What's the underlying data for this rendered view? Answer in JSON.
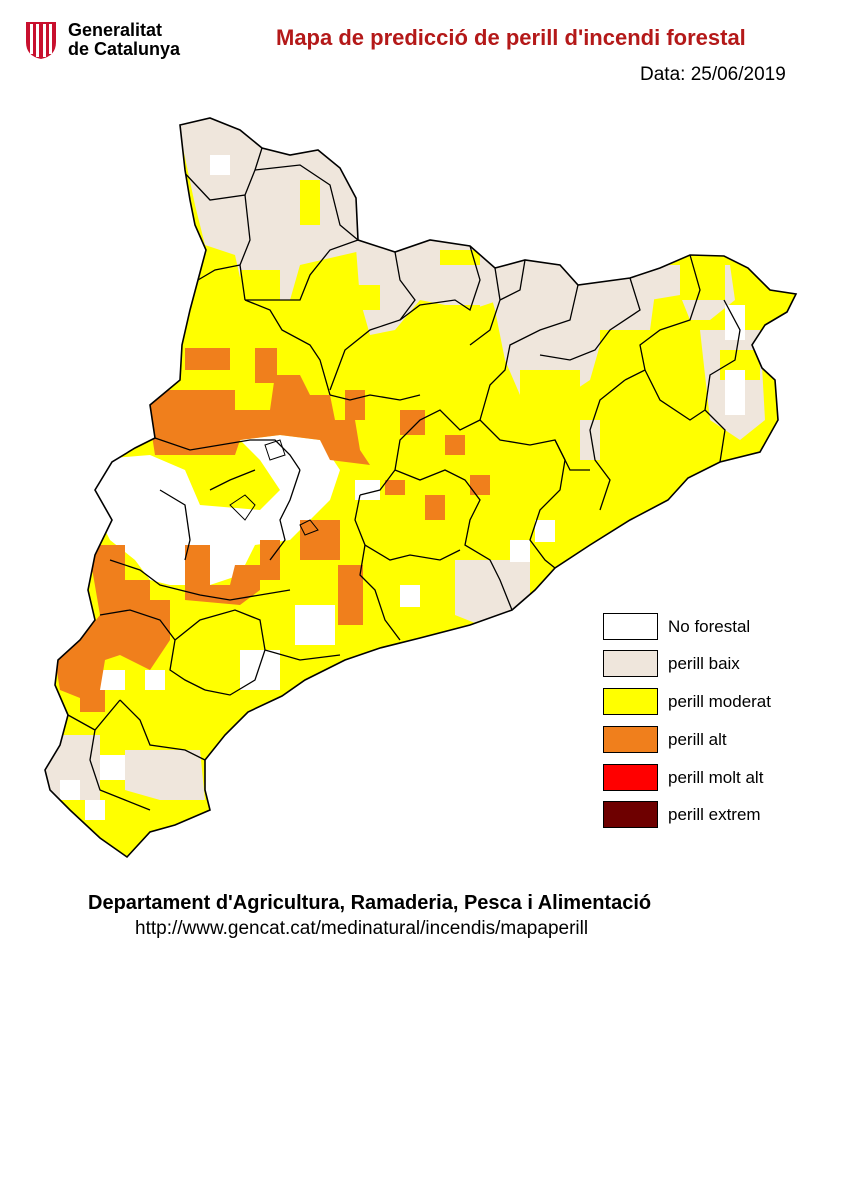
{
  "header": {
    "logo_line1": "Generalitat",
    "logo_line2": "de Catalunya",
    "title": "Mapa de predicció de perill d'incendi forestal",
    "date": "Data: 25/06/2019"
  },
  "legend": [
    {
      "label": "No forestal",
      "color": "#ffffff"
    },
    {
      "label": "perill baix",
      "color": "#efe6dc"
    },
    {
      "label": "perill moderat",
      "color": "#ffff00"
    },
    {
      "label": "perill alt",
      "color": "#f07f1c"
    },
    {
      "label": "perill molt alt",
      "color": "#ff0000"
    },
    {
      "label": "perill extrem",
      "color": "#6e0000"
    }
  ],
  "footer": {
    "department": "Departament d'Agricultura, Ramaderia, Pesca i Alimentació",
    "url": "http://www.gencat.cat/medinatural/incendis/mapaperill"
  },
  "colors": {
    "title": "#b41919",
    "border": "#000000"
  }
}
